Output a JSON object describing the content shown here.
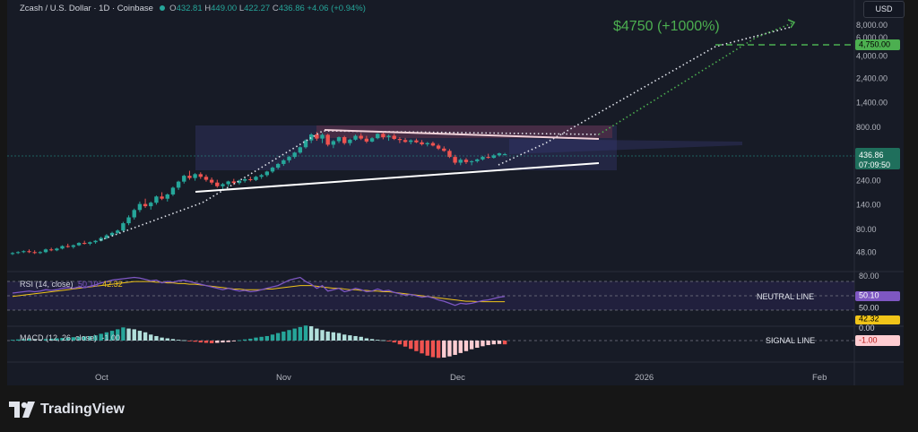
{
  "header": {
    "title": "Zcash / U.S. Dollar · 1D · Coinbase",
    "o_label": "O",
    "o_value": "432.81",
    "h_label": "H",
    "h_value": "449.00",
    "l_label": "L",
    "l_value": "422.27",
    "c_label": "C",
    "c_value": "436.86",
    "change": "+4.06 (+0.94%)"
  },
  "currency_button": "USD",
  "brand": "TradingView",
  "target_annotation": "$4750 (+1000%)",
  "neutral_line_label": "NEUTRAL LINE",
  "signal_line_label": "SIGNAL LINE",
  "rsi_label": "RSI (14, close)",
  "rsi_value_text": "50.10",
  "rsi_ma_value_text": "42.32",
  "macd_label": "MACD (12, 26, close)",
  "macd_value_text": "-1.00",
  "price_badges": {
    "target": "4,750.00",
    "last": "436.86",
    "countdown": "07:09:50",
    "rsi_badge": "50.10",
    "rsi_50": "50.00",
    "rsi_ma_badge": "42.32",
    "macd_zero": "0.00",
    "macd_badge": "-1.00"
  },
  "colors": {
    "up": "#26a69a",
    "down": "#ef5350",
    "background": "#171b26",
    "target_green": "#4caf50",
    "rsi_line": "#7e57c2",
    "rsi_ma": "#f0c419"
  },
  "chart_data": {
    "type": "candlestick",
    "price_scale": "log",
    "price_ticks": [
      "8,000.00",
      "6,000.00",
      "4,000.00",
      "2,400.00",
      "1,400.00",
      "800.00",
      "240.00",
      "140.00",
      "80.00",
      "48.00"
    ],
    "x_tick_labels": [
      "Oct",
      "Nov",
      "Dec",
      "2026",
      "Feb"
    ],
    "rsi_ticks": [
      "80.00"
    ],
    "candles": [
      [
        46,
        48,
        45,
        47
      ],
      [
        47,
        49,
        46,
        48
      ],
      [
        48,
        50,
        47,
        49
      ],
      [
        49,
        51,
        47,
        48
      ],
      [
        48,
        50,
        46,
        47
      ],
      [
        47,
        49,
        46,
        48
      ],
      [
        48,
        52,
        47,
        51
      ],
      [
        51,
        53,
        49,
        50
      ],
      [
        50,
        53,
        49,
        52
      ],
      [
        52,
        56,
        51,
        55
      ],
      [
        55,
        58,
        53,
        54
      ],
      [
        54,
        57,
        52,
        56
      ],
      [
        56,
        60,
        55,
        59
      ],
      [
        59,
        62,
        57,
        58
      ],
      [
        58,
        61,
        56,
        60
      ],
      [
        60,
        63,
        58,
        62
      ],
      [
        62,
        68,
        61,
        66
      ],
      [
        66,
        72,
        64,
        70
      ],
      [
        70,
        76,
        68,
        74
      ],
      [
        74,
        80,
        72,
        78
      ],
      [
        78,
        95,
        76,
        92
      ],
      [
        92,
        110,
        88,
        105
      ],
      [
        105,
        128,
        100,
        124
      ],
      [
        124,
        150,
        118,
        142
      ],
      [
        142,
        160,
        130,
        135
      ],
      [
        135,
        150,
        125,
        146
      ],
      [
        146,
        172,
        140,
        168
      ],
      [
        168,
        185,
        155,
        160
      ],
      [
        160,
        180,
        150,
        176
      ],
      [
        176,
        210,
        170,
        205
      ],
      [
        205,
        240,
        195,
        235
      ],
      [
        235,
        275,
        225,
        268
      ],
      [
        268,
        300,
        245,
        255
      ],
      [
        255,
        285,
        240,
        278
      ],
      [
        278,
        290,
        250,
        262
      ],
      [
        262,
        275,
        235,
        245
      ],
      [
        245,
        258,
        220,
        230
      ],
      [
        230,
        245,
        205,
        212
      ],
      [
        212,
        228,
        195,
        222
      ],
      [
        222,
        240,
        210,
        236
      ],
      [
        236,
        250,
        218,
        228
      ],
      [
        228,
        246,
        220,
        240
      ],
      [
        240,
        256,
        230,
        248
      ],
      [
        248,
        262,
        236,
        244
      ],
      [
        244,
        268,
        238,
        262
      ],
      [
        262,
        280,
        250,
        272
      ],
      [
        272,
        300,
        262,
        295
      ],
      [
        295,
        330,
        285,
        322
      ],
      [
        322,
        358,
        310,
        350
      ],
      [
        350,
        390,
        335,
        380
      ],
      [
        380,
        420,
        360,
        410
      ],
      [
        410,
        460,
        395,
        452
      ],
      [
        452,
        520,
        440,
        510
      ],
      [
        510,
        610,
        495,
        595
      ],
      [
        595,
        700,
        560,
        680
      ],
      [
        680,
        720,
        590,
        620
      ],
      [
        620,
        700,
        560,
        675
      ],
      [
        675,
        690,
        520,
        540
      ],
      [
        540,
        600,
        500,
        585
      ],
      [
        585,
        650,
        560,
        640
      ],
      [
        640,
        660,
        540,
        560
      ],
      [
        560,
        620,
        530,
        605
      ],
      [
        605,
        680,
        590,
        660
      ],
      [
        660,
        700,
        600,
        620
      ],
      [
        620,
        660,
        560,
        580
      ],
      [
        580,
        640,
        570,
        625
      ],
      [
        625,
        700,
        610,
        690
      ],
      [
        690,
        720,
        610,
        640
      ],
      [
        640,
        680,
        590,
        660
      ],
      [
        660,
        690,
        600,
        615
      ],
      [
        615,
        640,
        560,
        600
      ],
      [
        600,
        630,
        565,
        575
      ],
      [
        575,
        610,
        545,
        595
      ],
      [
        595,
        620,
        560,
        570
      ],
      [
        570,
        600,
        530,
        545
      ],
      [
        545,
        575,
        520,
        560
      ],
      [
        560,
        580,
        520,
        530
      ],
      [
        530,
        550,
        480,
        495
      ],
      [
        495,
        520,
        460,
        470
      ],
      [
        470,
        490,
        400,
        410
      ],
      [
        410,
        430,
        345,
        360
      ],
      [
        360,
        400,
        340,
        385
      ],
      [
        385,
        400,
        350,
        365
      ],
      [
        365,
        380,
        340,
        372
      ],
      [
        372,
        395,
        360,
        388
      ],
      [
        388,
        420,
        378,
        410
      ],
      [
        410,
        440,
        395,
        402
      ],
      [
        402,
        438,
        395,
        425
      ],
      [
        425,
        452,
        415,
        445
      ],
      [
        432.81,
        449,
        422.27,
        436.86
      ]
    ],
    "rsi": [
      55,
      56,
      57,
      58,
      57,
      58,
      60,
      59,
      60,
      62,
      63,
      62,
      64,
      63,
      65,
      67,
      70,
      72,
      74,
      75,
      76,
      77,
      78,
      77,
      75,
      73,
      74,
      70,
      72,
      71,
      73,
      74,
      72,
      70,
      68,
      66,
      64,
      62,
      60,
      62,
      60,
      58,
      59,
      57,
      58,
      60,
      62,
      64,
      66,
      70,
      74,
      76,
      78,
      72,
      68,
      62,
      66,
      58,
      60,
      62,
      57,
      59,
      62,
      60,
      57,
      58,
      61,
      58,
      59,
      56,
      54,
      52,
      53,
      51,
      49,
      50,
      48,
      45,
      43,
      40,
      37,
      40,
      39,
      40,
      42,
      44,
      45,
      47,
      49,
      50.1
    ],
    "rsi_ma": [
      50,
      51,
      52,
      53,
      54,
      55,
      56,
      57,
      58,
      59,
      60,
      61,
      62,
      63,
      64,
      65,
      66,
      67,
      68,
      69,
      70,
      71,
      72,
      72,
      72,
      72,
      71,
      71,
      70,
      70,
      69,
      69,
      68,
      68,
      67,
      66,
      65,
      64,
      63,
      62,
      61,
      61,
      60,
      60,
      60,
      60,
      61,
      61,
      62,
      63,
      64,
      65,
      66,
      66,
      66,
      65,
      64,
      63,
      62,
      62,
      61,
      60,
      60,
      59,
      59,
      58,
      58,
      57,
      57,
      56,
      55,
      54,
      53,
      52,
      51,
      50,
      49,
      48,
      47,
      46,
      45,
      44,
      43,
      43,
      42.5,
      42.3,
      42.3,
      42.3,
      42.32,
      42.32
    ],
    "macd_hist": [
      0.2,
      0.3,
      0.4,
      0.5,
      0.4,
      0.3,
      0.4,
      0.5,
      0.6,
      0.7,
      0.8,
      0.9,
      1,
      1.1,
      1.2,
      1.4,
      1.8,
      2.2,
      2.6,
      3,
      3.5,
      3.2,
      3,
      2.6,
      2.2,
      1.6,
      1.2,
      0.8,
      0.6,
      0.4,
      0.2,
      0.1,
      -0.1,
      -0.3,
      -0.5,
      -0.6,
      -0.7,
      -0.6,
      -0.5,
      -0.4,
      -0.2,
      0.1,
      0.3,
      0.5,
      0.8,
      1,
      1.2,
      1.6,
      2,
      2.4,
      2.8,
      3.2,
      3.6,
      4,
      3.8,
      3.2,
      2.8,
      2.4,
      2.2,
      2,
      1.6,
      1.4,
      1.2,
      1,
      0.6,
      0.4,
      0.2,
      0.1,
      -0.2,
      -0.5,
      -1,
      -1.6,
      -2.2,
      -2.8,
      -3.4,
      -4,
      -4.4,
      -4.6,
      -4.5,
      -4.2,
      -3.8,
      -3.3,
      -2.8,
      -2.3,
      -1.9,
      -1.5,
      -1.2,
      -1,
      -0.9,
      -1.0
    ]
  }
}
